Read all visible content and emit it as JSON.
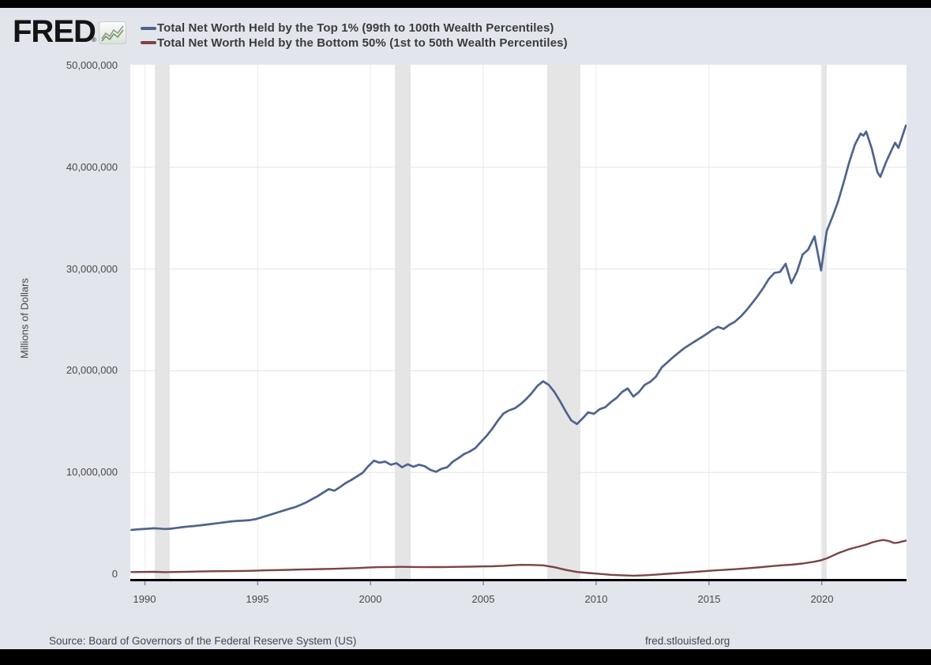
{
  "header": {
    "logo_text": "FRED",
    "registered_mark": "®"
  },
  "legend": [
    {
      "label": "Total Net Worth Held by the Top 1% (99th to 100th Wealth Percentiles)",
      "color": "#4d648d"
    },
    {
      "label": "Total Net Worth Held by the Bottom 50% (1st to 50th Wealth Percentiles)",
      "color": "#7b4443"
    }
  ],
  "y_axis": {
    "title": "Millions of Dollars",
    "ticks": [
      "50,000,000",
      "40,000,000",
      "30,000,000",
      "20,000,000",
      "10,000,000",
      "0"
    ]
  },
  "x_axis": {
    "ticks": [
      "1990",
      "1995",
      "2000",
      "2005",
      "2010",
      "2015",
      "2020"
    ]
  },
  "footer": {
    "source": "Source: Board of Governors of the Federal Reserve System (US)",
    "site": "fred.stlouisfed.org"
  },
  "chart_data": {
    "type": "line",
    "title": "",
    "xlabel": "",
    "ylabel": "Millions of Dollars",
    "x_range": [
      1989.35,
      2023.76
    ],
    "ylim": [
      0,
      50000000
    ],
    "x_tick_years": [
      1990,
      1995,
      2000,
      2005,
      2010,
      2015,
      2020
    ],
    "y_tick_values": [
      0,
      10000000,
      20000000,
      30000000,
      40000000,
      50000000
    ],
    "grid": true,
    "legend_position": "top-left",
    "recession_bands": [
      [
        1990.44,
        1991.1
      ],
      [
        2001.08,
        2001.78
      ],
      [
        2007.83,
        2009.3
      ],
      [
        2019.97,
        2020.22
      ]
    ],
    "colors": {
      "plot_background": "#ffffff",
      "recession_band": "#e5e5e5",
      "grid_horizontal": "#e3e3e3",
      "grid_vertical": "#ececec",
      "axis_line": "#000000",
      "tick_mark": "#8a8a8a"
    },
    "series": [
      {
        "name": "Total Net Worth Held by the Top 1% (99th to 100th Wealth Percentiles)",
        "color": "#4d648d",
        "stroke_width": 2.7,
        "points": [
          [
            1989.4,
            4350000
          ],
          [
            1989.65,
            4400000
          ],
          [
            1989.9,
            4430000
          ],
          [
            1990.15,
            4470000
          ],
          [
            1990.4,
            4510000
          ],
          [
            1990.65,
            4480000
          ],
          [
            1990.9,
            4440000
          ],
          [
            1991.15,
            4470000
          ],
          [
            1991.4,
            4550000
          ],
          [
            1991.65,
            4620000
          ],
          [
            1991.9,
            4680000
          ],
          [
            1992.15,
            4730000
          ],
          [
            1992.4,
            4790000
          ],
          [
            1992.65,
            4850000
          ],
          [
            1992.9,
            4920000
          ],
          [
            1993.15,
            4990000
          ],
          [
            1993.4,
            5060000
          ],
          [
            1993.65,
            5130000
          ],
          [
            1993.9,
            5200000
          ],
          [
            1994.15,
            5240000
          ],
          [
            1994.4,
            5270000
          ],
          [
            1994.65,
            5310000
          ],
          [
            1994.9,
            5400000
          ],
          [
            1995.15,
            5570000
          ],
          [
            1995.4,
            5740000
          ],
          [
            1995.65,
            5910000
          ],
          [
            1995.9,
            6090000
          ],
          [
            1996.15,
            6260000
          ],
          [
            1996.4,
            6430000
          ],
          [
            1996.65,
            6580000
          ],
          [
            1996.9,
            6810000
          ],
          [
            1997.15,
            7060000
          ],
          [
            1997.4,
            7360000
          ],
          [
            1997.65,
            7660000
          ],
          [
            1997.9,
            8010000
          ],
          [
            1998.15,
            8360000
          ],
          [
            1998.4,
            8210000
          ],
          [
            1998.65,
            8560000
          ],
          [
            1998.9,
            8960000
          ],
          [
            1999.15,
            9260000
          ],
          [
            1999.4,
            9610000
          ],
          [
            1999.65,
            9960000
          ],
          [
            1999.9,
            10610000
          ],
          [
            2000.15,
            11160000
          ],
          [
            2000.4,
            10960000
          ],
          [
            2000.65,
            11060000
          ],
          [
            2000.9,
            10760000
          ],
          [
            2001.15,
            10910000
          ],
          [
            2001.4,
            10510000
          ],
          [
            2001.65,
            10810000
          ],
          [
            2001.9,
            10560000
          ],
          [
            2002.15,
            10760000
          ],
          [
            2002.4,
            10610000
          ],
          [
            2002.65,
            10260000
          ],
          [
            2002.9,
            10060000
          ],
          [
            2003.15,
            10360000
          ],
          [
            2003.4,
            10510000
          ],
          [
            2003.65,
            11060000
          ],
          [
            2003.9,
            11410000
          ],
          [
            2004.15,
            11810000
          ],
          [
            2004.4,
            12060000
          ],
          [
            2004.65,
            12410000
          ],
          [
            2004.9,
            13010000
          ],
          [
            2005.15,
            13610000
          ],
          [
            2005.4,
            14310000
          ],
          [
            2005.65,
            15110000
          ],
          [
            2005.9,
            15810000
          ],
          [
            2006.15,
            16110000
          ],
          [
            2006.4,
            16310000
          ],
          [
            2006.65,
            16710000
          ],
          [
            2006.9,
            17210000
          ],
          [
            2007.15,
            17810000
          ],
          [
            2007.4,
            18510000
          ],
          [
            2007.65,
            18960000
          ],
          [
            2007.9,
            18610000
          ],
          [
            2008.15,
            17910000
          ],
          [
            2008.4,
            17010000
          ],
          [
            2008.65,
            16010000
          ],
          [
            2008.9,
            15110000
          ],
          [
            2009.15,
            14760000
          ],
          [
            2009.4,
            15310000
          ],
          [
            2009.65,
            15910000
          ],
          [
            2009.9,
            15760000
          ],
          [
            2010.15,
            16210000
          ],
          [
            2010.4,
            16410000
          ],
          [
            2010.65,
            16910000
          ],
          [
            2010.9,
            17310000
          ],
          [
            2011.15,
            17910000
          ],
          [
            2011.4,
            18260000
          ],
          [
            2011.65,
            17460000
          ],
          [
            2011.9,
            17910000
          ],
          [
            2012.15,
            18610000
          ],
          [
            2012.4,
            18910000
          ],
          [
            2012.65,
            19410000
          ],
          [
            2012.9,
            20310000
          ],
          [
            2013.15,
            20810000
          ],
          [
            2013.4,
            21310000
          ],
          [
            2013.65,
            21760000
          ],
          [
            2013.9,
            22210000
          ],
          [
            2014.15,
            22560000
          ],
          [
            2014.4,
            22910000
          ],
          [
            2014.65,
            23260000
          ],
          [
            2014.9,
            23610000
          ],
          [
            2015.15,
            24010000
          ],
          [
            2015.4,
            24310000
          ],
          [
            2015.65,
            24110000
          ],
          [
            2015.9,
            24510000
          ],
          [
            2016.15,
            24810000
          ],
          [
            2016.4,
            25310000
          ],
          [
            2016.65,
            25910000
          ],
          [
            2016.9,
            26610000
          ],
          [
            2017.15,
            27310000
          ],
          [
            2017.4,
            28110000
          ],
          [
            2017.65,
            29010000
          ],
          [
            2017.9,
            29610000
          ],
          [
            2018.15,
            29710000
          ],
          [
            2018.4,
            30510000
          ],
          [
            2018.65,
            28610000
          ],
          [
            2018.9,
            29710000
          ],
          [
            2019.15,
            31410000
          ],
          [
            2019.4,
            31910000
          ],
          [
            2019.68,
            33210000
          ],
          [
            2019.97,
            29860000
          ],
          [
            2020.22,
            33710000
          ],
          [
            2020.47,
            35110000
          ],
          [
            2020.72,
            36610000
          ],
          [
            2020.97,
            38510000
          ],
          [
            2021.22,
            40510000
          ],
          [
            2021.47,
            42210000
          ],
          [
            2021.72,
            43310000
          ],
          [
            2021.85,
            43110000
          ],
          [
            2021.97,
            43510000
          ],
          [
            2022.22,
            41810000
          ],
          [
            2022.47,
            39510000
          ],
          [
            2022.6,
            39060000
          ],
          [
            2022.85,
            40510000
          ],
          [
            2023.1,
            41710000
          ],
          [
            2023.25,
            42410000
          ],
          [
            2023.4,
            41910000
          ],
          [
            2023.55,
            42910000
          ],
          [
            2023.73,
            44110000
          ]
        ]
      },
      {
        "name": "Total Net Worth Held by the Bottom 50% (1st to 50th Wealth Percentiles)",
        "color": "#7b4443",
        "stroke_width": 2.4,
        "points": [
          [
            1989.4,
            210000
          ],
          [
            1989.9,
            220000
          ],
          [
            1990.4,
            235000
          ],
          [
            1990.9,
            205000
          ],
          [
            1991.4,
            215000
          ],
          [
            1991.9,
            240000
          ],
          [
            1992.4,
            265000
          ],
          [
            1992.9,
            285000
          ],
          [
            1993.4,
            295000
          ],
          [
            1993.9,
            305000
          ],
          [
            1994.4,
            315000
          ],
          [
            1994.9,
            340000
          ],
          [
            1995.4,
            380000
          ],
          [
            1995.9,
            405000
          ],
          [
            1996.4,
            430000
          ],
          [
            1996.9,
            455000
          ],
          [
            1997.4,
            480000
          ],
          [
            1997.9,
            505000
          ],
          [
            1998.4,
            530000
          ],
          [
            1998.9,
            565000
          ],
          [
            1999.4,
            600000
          ],
          [
            1999.9,
            650000
          ],
          [
            2000.4,
            690000
          ],
          [
            2000.9,
            710000
          ],
          [
            2001.4,
            720000
          ],
          [
            2001.9,
            705000
          ],
          [
            2002.4,
            690000
          ],
          [
            2002.9,
            700000
          ],
          [
            2003.4,
            710000
          ],
          [
            2003.9,
            725000
          ],
          [
            2004.4,
            740000
          ],
          [
            2004.9,
            760000
          ],
          [
            2005.4,
            780000
          ],
          [
            2005.9,
            820000
          ],
          [
            2006.15,
            860000
          ],
          [
            2006.65,
            920000
          ],
          [
            2007.15,
            905000
          ],
          [
            2007.65,
            870000
          ],
          [
            2008.15,
            680000
          ],
          [
            2008.65,
            420000
          ],
          [
            2009.15,
            220000
          ],
          [
            2009.65,
            120000
          ],
          [
            2010.15,
            30000
          ],
          [
            2010.65,
            -60000
          ],
          [
            2011.15,
            -110000
          ],
          [
            2011.65,
            -150000
          ],
          [
            2012.15,
            -110000
          ],
          [
            2012.65,
            -50000
          ],
          [
            2013.15,
            40000
          ],
          [
            2013.65,
            110000
          ],
          [
            2014.15,
            190000
          ],
          [
            2014.65,
            270000
          ],
          [
            2015.15,
            360000
          ],
          [
            2015.65,
            420000
          ],
          [
            2016.15,
            490000
          ],
          [
            2016.65,
            570000
          ],
          [
            2017.15,
            660000
          ],
          [
            2017.65,
            760000
          ],
          [
            2018.15,
            860000
          ],
          [
            2018.65,
            930000
          ],
          [
            2019.15,
            1050000
          ],
          [
            2019.65,
            1220000
          ],
          [
            2019.97,
            1370000
          ],
          [
            2020.22,
            1550000
          ],
          [
            2020.47,
            1800000
          ],
          [
            2020.72,
            2060000
          ],
          [
            2020.97,
            2260000
          ],
          [
            2021.22,
            2460000
          ],
          [
            2021.47,
            2610000
          ],
          [
            2021.72,
            2760000
          ],
          [
            2021.97,
            2910000
          ],
          [
            2022.22,
            3110000
          ],
          [
            2022.47,
            3260000
          ],
          [
            2022.72,
            3360000
          ],
          [
            2022.97,
            3260000
          ],
          [
            2023.22,
            3060000
          ],
          [
            2023.4,
            3110000
          ],
          [
            2023.55,
            3210000
          ],
          [
            2023.73,
            3290000
          ]
        ]
      }
    ]
  }
}
